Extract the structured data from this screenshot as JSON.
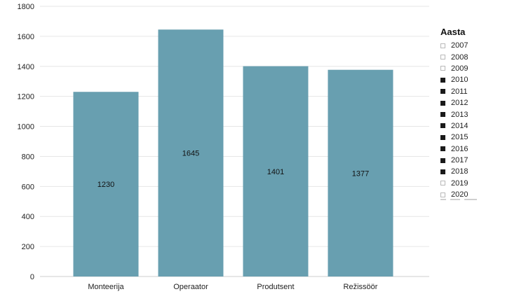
{
  "chart_data": {
    "type": "bar",
    "categories": [
      "Monteerija",
      "Operaator",
      "Produtsent",
      "Režissöör"
    ],
    "values": [
      1230,
      1645,
      1401,
      1377
    ],
    "data_labels": [
      "1230",
      "1645",
      "1401",
      "1377"
    ],
    "title": "",
    "xlabel": "",
    "ylabel": "",
    "ylim": [
      0,
      1800
    ],
    "yticks": [
      "0",
      "200",
      "400",
      "600",
      "800",
      "1000",
      "1200",
      "1400",
      "1600",
      "1800"
    ],
    "grid": true,
    "bar_color": "#689fb0",
    "legend_placement": "right"
  },
  "legend": {
    "title": "Aasta",
    "items": [
      {
        "label": "2007",
        "checked": false
      },
      {
        "label": "2008",
        "checked": false
      },
      {
        "label": "2009",
        "checked": false
      },
      {
        "label": "2010",
        "checked": true
      },
      {
        "label": "2011",
        "checked": true
      },
      {
        "label": "2012",
        "checked": true
      },
      {
        "label": "2013",
        "checked": true
      },
      {
        "label": "2014",
        "checked": true
      },
      {
        "label": "2015",
        "checked": true
      },
      {
        "label": "2016",
        "checked": true
      },
      {
        "label": "2017",
        "checked": true
      },
      {
        "label": "2018",
        "checked": true
      },
      {
        "label": "2019",
        "checked": false
      },
      {
        "label": "2020",
        "checked": false
      }
    ]
  }
}
